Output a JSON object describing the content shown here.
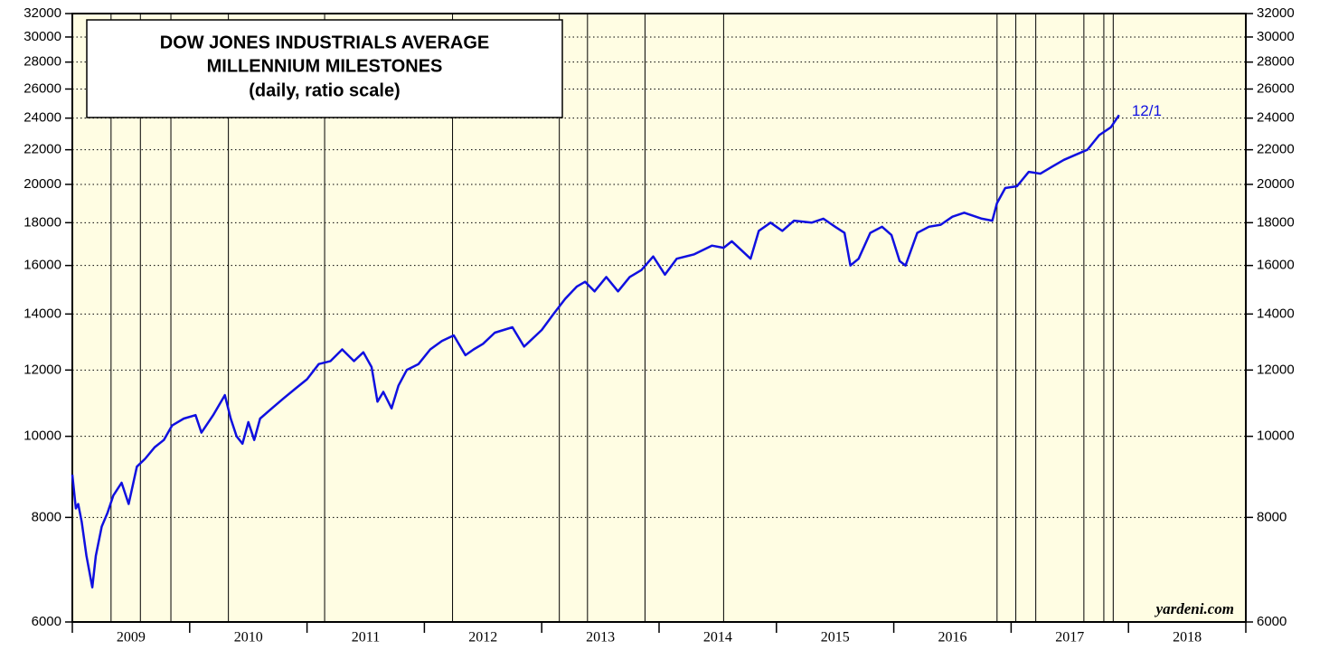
{
  "chart_data": {
    "type": "line",
    "title_lines": [
      "DOW JONES INDUSTRIALS AVERAGE",
      "MILLENNIUM MILESTONES",
      "(daily, ratio scale)"
    ],
    "annotation": "12/1",
    "source": "yardeni.com",
    "log_scale": true,
    "grid": true,
    "background": "#fffde3",
    "categories": [
      "2009",
      "2010",
      "2011",
      "2012",
      "2013",
      "2014",
      "2015",
      "2016",
      "2017",
      "2018"
    ],
    "xlim": [
      2009,
      2019
    ],
    "xticks": [
      2009,
      2010,
      2011,
      2012,
      2013,
      2014,
      2015,
      2016,
      2017,
      2018,
      2019
    ],
    "ylim": [
      6000,
      32000
    ],
    "yticks": [
      6000,
      8000,
      10000,
      12000,
      14000,
      16000,
      18000,
      20000,
      22000,
      24000,
      26000,
      28000,
      30000,
      32000
    ],
    "milestones": [
      2009.33,
      2009.58,
      2009.84,
      2010.33,
      2011.15,
      2012.24,
      2013.15,
      2013.39,
      2013.88,
      2014.55,
      2016.88,
      2017.04,
      2017.21,
      2017.62,
      2017.79,
      2017.87
    ],
    "series": [
      {
        "color": "#1010e0",
        "x": [
          2009.0,
          2009.03,
          2009.05,
          2009.08,
          2009.12,
          2009.17,
          2009.2,
          2009.25,
          2009.3,
          2009.35,
          2009.42,
          2009.48,
          2009.55,
          2009.62,
          2009.7,
          2009.78,
          2009.85,
          2009.95,
          2010.05,
          2010.1,
          2010.2,
          2010.3,
          2010.35,
          2010.4,
          2010.45,
          2010.5,
          2010.55,
          2010.6,
          2010.7,
          2010.8,
          2010.9,
          2011.0,
          2011.1,
          2011.2,
          2011.3,
          2011.4,
          2011.48,
          2011.55,
          2011.6,
          2011.65,
          2011.72,
          2011.78,
          2011.85,
          2011.95,
          2012.05,
          2012.15,
          2012.25,
          2012.35,
          2012.42,
          2012.5,
          2012.6,
          2012.75,
          2012.85,
          2013.0,
          2013.1,
          2013.2,
          2013.3,
          2013.37,
          2013.45,
          2013.55,
          2013.65,
          2013.75,
          2013.85,
          2013.95,
          2014.05,
          2014.15,
          2014.3,
          2014.45,
          2014.55,
          2014.62,
          2014.78,
          2014.85,
          2014.95,
          2015.05,
          2015.15,
          2015.3,
          2015.4,
          2015.5,
          2015.58,
          2015.63,
          2015.7,
          2015.8,
          2015.9,
          2015.98,
          2016.05,
          2016.1,
          2016.2,
          2016.3,
          2016.4,
          2016.5,
          2016.6,
          2016.75,
          2016.84,
          2016.88,
          2016.95,
          2017.05,
          2017.15,
          2017.25,
          2017.35,
          2017.45,
          2017.55,
          2017.65,
          2017.75,
          2017.85,
          2017.92
        ],
        "values": [
          9000,
          8200,
          8300,
          7900,
          7200,
          6600,
          7200,
          7800,
          8100,
          8500,
          8800,
          8300,
          9200,
          9400,
          9700,
          9900,
          10300,
          10500,
          10600,
          10100,
          10600,
          11200,
          10500,
          10000,
          9800,
          10400,
          9900,
          10500,
          10800,
          11100,
          11400,
          11700,
          12200,
          12300,
          12700,
          12300,
          12600,
          12100,
          11000,
          11300,
          10800,
          11500,
          12000,
          12200,
          12700,
          13000,
          13200,
          12500,
          12700,
          12900,
          13300,
          13500,
          12800,
          13400,
          14000,
          14600,
          15100,
          15300,
          14900,
          15500,
          14900,
          15500,
          15800,
          16400,
          15600,
          16300,
          16500,
          16900,
          16800,
          17100,
          16300,
          17600,
          18000,
          17600,
          18100,
          18000,
          18200,
          17800,
          17500,
          16000,
          16300,
          17500,
          17800,
          17400,
          16200,
          16000,
          17500,
          17800,
          17900,
          18300,
          18500,
          18200,
          18100,
          19000,
          19800,
          19900,
          20700,
          20600,
          21000,
          21400,
          21700,
          22000,
          22900,
          23400,
          24200
        ]
      }
    ]
  }
}
